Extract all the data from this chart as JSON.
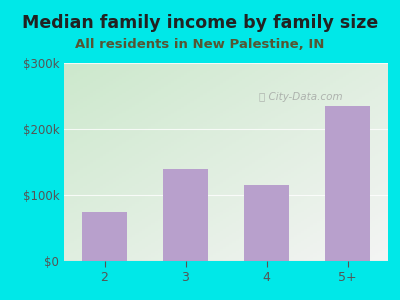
{
  "title": "Median family income by family size",
  "subtitle": "All residents in New Palestine, IN",
  "categories": [
    "2",
    "3",
    "4",
    "5+"
  ],
  "values": [
    75000,
    140000,
    115000,
    235000
  ],
  "bar_color": "#b8a0cc",
  "background_outer": "#00e8e8",
  "background_inner_topleft": "#cce8cc",
  "background_inner_bottomright": "#f4f4f4",
  "ylim": [
    0,
    300000
  ],
  "yticks": [
    0,
    100000,
    200000,
    300000
  ],
  "ytick_labels": [
    "$0",
    "$100k",
    "$200k",
    "$300k"
  ],
  "title_fontsize": 12.5,
  "subtitle_fontsize": 9.5,
  "title_color": "#222222",
  "subtitle_color": "#555533",
  "tick_color": "#555555",
  "watermark": "City-Data.com",
  "bar_width": 0.55
}
